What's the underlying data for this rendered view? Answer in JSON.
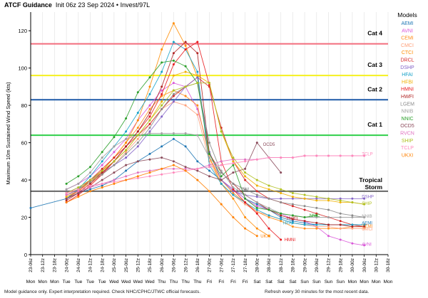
{
  "header": {
    "title": "ATCF Guidance",
    "subtitle": "Init 06z 23 Sep 2024 • Invest/97L"
  },
  "footer": {
    "left": "Model guidance only. Expert interpretation required. Check NHC/CPHC/JTWC official forecasts.",
    "right": "Refresh every 30 minutes for the most recent data."
  },
  "chart_data": {
    "type": "line",
    "title": "",
    "ylabel": "Maximum 10m Sustained Wind Speed (kts)",
    "xlabel": "",
    "ylim": [
      0,
      130
    ],
    "yticks": [
      0,
      20,
      40,
      60,
      80,
      100,
      120
    ],
    "x_time_labels": [
      "23-06z",
      "23-12z",
      "23-18z",
      "24-00z",
      "24-06z",
      "24-12z",
      "24-18z",
      "25-00z",
      "25-06z",
      "25-12z",
      "25-18z",
      "26-00z",
      "26-06z",
      "26-12z",
      "26-18z",
      "27-00z",
      "27-06z",
      "27-12z",
      "27-18z",
      "28-00z",
      "28-06z",
      "28-12z",
      "28-18z",
      "29-00z",
      "29-06z",
      "29-12z",
      "29-18z",
      "30-00z",
      "30-06z",
      "30-12z",
      "30-18z"
    ],
    "x_day_labels": [
      "Mon",
      "Mon",
      "Mon",
      "Tue",
      "Tue",
      "Tue",
      "Tue",
      "Wed",
      "Wed",
      "Wed",
      "Wed",
      "Thu",
      "Thu",
      "Thu",
      "Thu",
      "Fri",
      "Fri",
      "Fri",
      "Fri",
      "Sat",
      "Sat",
      "Sat",
      "Sat",
      "Sun",
      "Sun",
      "Sun",
      "Sun",
      "Mon",
      "Mon",
      "Mon",
      "Mon"
    ],
    "grid": "vertical",
    "legend_title": "Models",
    "legend_position": "right",
    "thresholds": [
      {
        "label": "Cat 4",
        "value": 113,
        "color": "#f26d7d"
      },
      {
        "label": "Cat 3",
        "value": 96,
        "color": "#f5f020"
      },
      {
        "label": "Cat 2",
        "value": 83,
        "color": "#1f5aa8"
      },
      {
        "label": "Cat 1",
        "value": 64,
        "color": "#2fcf4a"
      },
      {
        "label": "Tropical Storm",
        "value": 34,
        "color": "#666666"
      }
    ],
    "series": [
      {
        "name": "AEMI",
        "color": "#1f77b4",
        "x": [
          0,
          3,
          4,
          5,
          6,
          7,
          8,
          9,
          10,
          11,
          12,
          13,
          14,
          15,
          16,
          17,
          18,
          19,
          20,
          21,
          22,
          23,
          24,
          25,
          26,
          27,
          28
        ],
        "values": [
          25,
          30,
          33,
          35,
          37,
          40,
          45,
          50,
          54,
          58,
          62,
          58,
          50,
          45,
          40,
          35,
          30,
          27,
          24,
          20,
          18,
          17,
          16,
          16,
          16,
          16,
          16
        ]
      },
      {
        "name": "AVNI",
        "color": "#d957d8",
        "x": [
          3,
          4,
          5,
          6,
          7,
          8,
          9,
          10,
          11,
          12,
          13,
          14,
          15,
          16,
          17,
          18,
          19,
          20,
          21,
          22,
          23,
          24,
          25,
          26,
          27,
          28
        ],
        "values": [
          35,
          38,
          42,
          48,
          55,
          62,
          72,
          80,
          88,
          92,
          90,
          78,
          55,
          40,
          35,
          30,
          26,
          24,
          22,
          19,
          18,
          15,
          10,
          8,
          6,
          5
        ]
      },
      {
        "name": "CEMI",
        "color": "#ff8c1a",
        "x": [
          3,
          4,
          5,
          6,
          7,
          8,
          9,
          10,
          11,
          12,
          13,
          14,
          15,
          16,
          17,
          18,
          19,
          20,
          21,
          22,
          23,
          24,
          25,
          26,
          27,
          28
        ],
        "values": [
          33,
          35,
          40,
          45,
          52,
          60,
          68,
          78,
          85,
          88,
          85,
          80,
          52,
          40,
          33,
          28,
          23,
          20,
          18,
          15,
          14,
          14,
          14,
          14,
          15,
          15
        ]
      },
      {
        "name": "CMCI",
        "color": "#ffa07a",
        "x": [
          3,
          4,
          5,
          6,
          7,
          8,
          9,
          10,
          11,
          12,
          13,
          14,
          15,
          16,
          17,
          18,
          19,
          20,
          21,
          22,
          23,
          24,
          25,
          26,
          27,
          28
        ],
        "values": [
          32,
          34,
          38,
          43,
          48,
          55,
          62,
          70,
          78,
          82,
          80,
          75,
          50,
          38,
          32,
          27,
          23,
          21,
          19,
          17,
          16,
          15,
          15,
          14,
          14,
          14
        ]
      },
      {
        "name": "CTCI",
        "color": "#ff8c00",
        "x": [
          3,
          4,
          5,
          6,
          7,
          8,
          9,
          10,
          11,
          12,
          13,
          14,
          15,
          16,
          17,
          18,
          19,
          20
        ],
        "values": [
          31,
          34,
          39,
          45,
          52,
          60,
          72,
          90,
          110,
          124,
          112,
          95,
          52,
          38,
          30,
          20,
          14,
          10
        ]
      },
      {
        "name": "DRCL",
        "color": "#d62728",
        "x": [
          3,
          4,
          5,
          6,
          7,
          8,
          9,
          10,
          11,
          12,
          13,
          14,
          15,
          16,
          17,
          18,
          19,
          20,
          21,
          22,
          23,
          24,
          25,
          26,
          27,
          28
        ],
        "values": [
          30,
          34,
          40,
          46,
          52,
          58,
          64,
          70,
          78,
          85,
          90,
          95,
          90,
          68,
          50,
          40,
          34,
          30,
          28,
          26,
          24,
          22,
          20,
          18,
          16,
          15
        ]
      },
      {
        "name": "DSHP",
        "color": "#8464c8",
        "x": [
          3,
          4,
          5,
          6,
          7,
          8,
          9,
          10,
          11,
          12,
          13,
          14,
          15,
          16,
          17,
          18,
          19,
          20,
          21,
          22,
          23,
          24,
          25,
          26,
          27,
          28
        ],
        "values": [
          33,
          36,
          40,
          44,
          48,
          52,
          58,
          66,
          74,
          82,
          90,
          95,
          55,
          40,
          34,
          32,
          31,
          30,
          30,
          30,
          30,
          30,
          30,
          30,
          30,
          30
        ]
      },
      {
        "name": "HFAI",
        "color": "#17a2c8",
        "x": [
          3,
          4,
          5,
          6,
          7,
          8,
          9,
          10,
          11,
          12,
          13,
          14,
          15,
          16,
          17,
          18,
          19,
          20,
          21,
          22,
          23,
          24,
          25,
          26,
          27,
          28
        ],
        "values": [
          30,
          35,
          42,
          50,
          58,
          66,
          76,
          86,
          98,
          114,
          110,
          98,
          48,
          38,
          32,
          28,
          24,
          21,
          19,
          17,
          16,
          16,
          16,
          16,
          16,
          16
        ]
      },
      {
        "name": "HFBI",
        "color": "#f0b000",
        "x": [
          3,
          4,
          5,
          6,
          7,
          8,
          9,
          10,
          11,
          12,
          13,
          14,
          15,
          16,
          17,
          18,
          19,
          20,
          21,
          22,
          23,
          24,
          25,
          26,
          27,
          28
        ],
        "values": [
          31,
          34,
          39,
          44,
          50,
          56,
          64,
          72,
          82,
          96,
          98,
          96,
          92,
          66,
          50,
          42,
          37,
          35,
          33,
          31,
          30,
          29,
          29,
          28,
          28,
          27
        ]
      },
      {
        "name": "HMNI",
        "color": "#e8191e",
        "x": [
          3,
          4,
          5,
          6,
          7,
          8,
          9,
          10,
          11,
          12,
          13,
          14,
          15,
          16,
          17,
          18,
          19,
          20,
          21
        ],
        "values": [
          28,
          32,
          37,
          43,
          50,
          58,
          66,
          74,
          86,
          102,
          110,
          114,
          91,
          50,
          35,
          28,
          22,
          14,
          8
        ]
      },
      {
        "name": "HWFI",
        "color": "#b02424",
        "x": [
          3,
          4,
          5,
          6,
          7,
          8,
          9,
          10,
          11,
          12,
          13,
          14,
          15,
          16,
          17,
          18,
          19,
          20,
          21,
          22,
          23,
          24,
          25,
          26,
          27,
          28
        ],
        "values": [
          29,
          33,
          38,
          44,
          50,
          58,
          66,
          76,
          90,
          108,
          114,
          108,
          54,
          44,
          38,
          32,
          28,
          24,
          21,
          19,
          18,
          17,
          16,
          16,
          15,
          15
        ]
      },
      {
        "name": "LGEM",
        "color": "#8a8a8a",
        "x": [
          3,
          4,
          5,
          6,
          7,
          8,
          9,
          10,
          11,
          12,
          13,
          14,
          15,
          16,
          17,
          18,
          19,
          20,
          21,
          22,
          23,
          24,
          25,
          26,
          27,
          28
        ],
        "values": [
          32,
          35,
          39,
          43,
          48,
          54,
          60,
          68,
          78,
          86,
          90,
          92,
          60,
          44,
          38,
          35,
          32,
          30,
          28,
          27,
          26,
          25,
          24,
          22,
          21,
          20
        ]
      },
      {
        "name": "NNIB",
        "color": "#a0a0a0",
        "x": [
          3,
          4,
          5,
          6,
          7,
          8,
          9,
          10,
          11,
          12,
          13,
          14,
          15,
          16,
          17,
          18,
          19,
          20,
          21,
          22,
          23,
          24,
          25,
          26,
          27,
          28
        ],
        "values": [
          35,
          38,
          44,
          52,
          58,
          62,
          64,
          65,
          65,
          65,
          65,
          64,
          52,
          45,
          36,
          32,
          28,
          25,
          22,
          21,
          20,
          20,
          20,
          20,
          20,
          20
        ]
      },
      {
        "name": "NNIC",
        "color": "#2ca02c",
        "x": [
          3,
          4,
          5,
          6,
          7,
          8,
          9,
          10,
          11,
          12,
          13,
          14,
          15,
          16,
          17,
          18,
          19,
          20,
          21,
          22,
          23,
          24
        ],
        "values": [
          38,
          42,
          47,
          55,
          63,
          73,
          87,
          95,
          103,
          104,
          101,
          92,
          54,
          42,
          48,
          30,
          25,
          24,
          22,
          21,
          20,
          21
        ]
      },
      {
        "name": "OCD5",
        "color": "#8b4a5a",
        "x": [
          3,
          4,
          5,
          6,
          7,
          8,
          9,
          10,
          11,
          12,
          13,
          14,
          15,
          16,
          17,
          18,
          19,
          20,
          21
        ],
        "values": [
          30,
          33,
          36,
          40,
          44,
          48,
          50,
          51,
          52,
          50,
          47,
          45,
          42,
          40,
          44,
          46,
          60,
          52,
          44
        ]
      },
      {
        "name": "RVCN",
        "color": "#e070c0",
        "x": [
          3,
          4,
          5,
          6,
          7,
          8,
          9,
          10,
          11,
          12,
          13,
          14,
          15,
          16,
          17,
          18,
          19,
          20,
          21,
          22,
          23,
          24,
          25,
          26,
          27,
          28
        ],
        "values": [
          32,
          34,
          36,
          38,
          40,
          42,
          44,
          45,
          46,
          46,
          46,
          46,
          48,
          50,
          51,
          51,
          51,
          52,
          52,
          52,
          53,
          53,
          53,
          53,
          53,
          53
        ]
      },
      {
        "name": "SHIP",
        "color": "#b0c020",
        "x": [
          3,
          4,
          5,
          6,
          7,
          8,
          9,
          10,
          11,
          12,
          13,
          14,
          15,
          16,
          17,
          18,
          19,
          20,
          21,
          22,
          23,
          24,
          25,
          26,
          27,
          28
        ],
        "values": [
          33,
          36,
          40,
          45,
          50,
          56,
          64,
          72,
          80,
          88,
          90,
          92,
          92,
          66,
          52,
          44,
          40,
          37,
          35,
          33,
          32,
          31,
          30,
          29,
          28,
          27
        ]
      },
      {
        "name": "TCLP",
        "color": "#ff88bb",
        "x": [
          3,
          4,
          5,
          6,
          7,
          8,
          9,
          10,
          11,
          12,
          13,
          14,
          15,
          16,
          17,
          18,
          19,
          20,
          21,
          22,
          23,
          24,
          25,
          26,
          27,
          28
        ],
        "values": [
          33,
          35,
          37,
          38,
          39,
          40,
          41,
          42,
          43,
          44,
          45,
          46,
          47,
          48,
          49,
          50,
          51,
          52,
          52,
          52,
          53,
          53,
          53,
          53,
          53,
          53
        ]
      },
      {
        "name": "UKXI",
        "color": "#ff8000",
        "x": [
          3,
          4,
          5,
          6,
          7,
          8,
          9,
          10,
          11,
          12,
          13,
          14,
          15,
          16,
          17,
          18,
          19
        ],
        "values": [
          28,
          31,
          34,
          36,
          38,
          40,
          42,
          44,
          46,
          48,
          45,
          40,
          34,
          27,
          20,
          14,
          10
        ]
      }
    ],
    "annotations": [
      {
        "text": "OCD5",
        "x": 19.5,
        "y": 59,
        "color": "#8b4a5a"
      },
      {
        "text": "LGEM",
        "x": 17.3,
        "y": 35,
        "color": "#8a8a8a"
      },
      {
        "text": "NNIC",
        "x": 23.4,
        "y": 21,
        "color": "#2ca02c"
      },
      {
        "text": "HWFI",
        "x": 21.5,
        "y": 19.5,
        "color": "#b02424"
      },
      {
        "text": "HFAI",
        "x": 21.2,
        "y": 17,
        "color": "#17a2c8"
      },
      {
        "text": "HMNI",
        "x": 21.3,
        "y": 8,
        "color": "#e8191e"
      },
      {
        "text": "UKXI",
        "x": 19.3,
        "y": 10,
        "color": "#ff8000"
      },
      {
        "text": "TCLP",
        "x": 27.8,
        "y": 54,
        "color": "#ff88bb"
      },
      {
        "text": "DSHP",
        "x": 27.8,
        "y": 31,
        "color": "#8464c8"
      },
      {
        "text": "SHIP",
        "x": 27.8,
        "y": 27.5,
        "color": "#b0c020"
      },
      {
        "text": "NNIB",
        "x": 27.8,
        "y": 20.5,
        "color": "#a0a0a0"
      },
      {
        "text": "AEMI",
        "x": 27.8,
        "y": 17,
        "color": "#1f77b4"
      },
      {
        "text": "CEMI",
        "x": 27.8,
        "y": 15.2,
        "color": "#ff8c1a"
      },
      {
        "text": "CMCI",
        "x": 27.8,
        "y": 13.8,
        "color": "#ffa07a"
      },
      {
        "text": "AVNI",
        "x": 27.8,
        "y": 5.5,
        "color": "#d957d8"
      }
    ]
  }
}
